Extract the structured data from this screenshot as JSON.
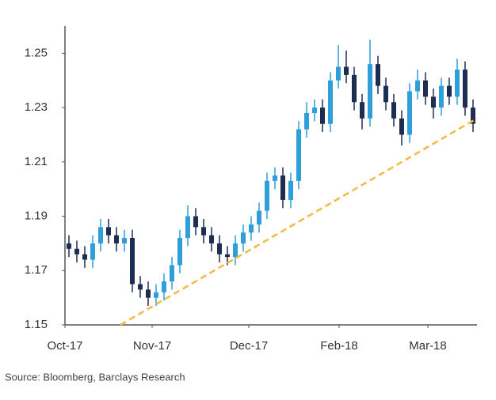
{
  "chart_data": {
    "type": "candlestick",
    "source": "Source: Bloomberg, Barclays Research",
    "up_color": "#2e9fd9",
    "down_color": "#1f2d52",
    "open": [
      1.18,
      1.178,
      1.176,
      1.174,
      1.18,
      1.186,
      1.183,
      1.18,
      1.182,
      1.165,
      1.163,
      1.16,
      1.162,
      1.166,
      1.172,
      1.182,
      1.19,
      1.186,
      1.183,
      1.18,
      1.176,
      1.175,
      1.18,
      1.184,
      1.187,
      1.192,
      1.203,
      1.205,
      1.196,
      1.203,
      1.222,
      1.228,
      1.23,
      1.224,
      1.24,
      1.245,
      1.242,
      1.232,
      1.226,
      1.246,
      1.238,
      1.232,
      1.226,
      1.22,
      1.236,
      1.24,
      1.234,
      1.23,
      1.238,
      1.234,
      1.244,
      1.23
    ],
    "high": [
      1.183,
      1.181,
      1.179,
      1.183,
      1.189,
      1.189,
      1.186,
      1.185,
      1.185,
      1.168,
      1.166,
      1.165,
      1.169,
      1.175,
      1.185,
      1.194,
      1.193,
      1.189,
      1.186,
      1.183,
      1.179,
      1.183,
      1.187,
      1.19,
      1.195,
      1.206,
      1.208,
      1.208,
      1.206,
      1.225,
      1.232,
      1.233,
      1.233,
      1.243,
      1.253,
      1.251,
      1.245,
      1.235,
      1.255,
      1.249,
      1.241,
      1.235,
      1.229,
      1.239,
      1.244,
      1.243,
      1.237,
      1.241,
      1.241,
      1.248,
      1.247,
      1.233
    ],
    "low": [
      1.175,
      1.173,
      1.171,
      1.171,
      1.177,
      1.18,
      1.177,
      1.177,
      1.162,
      1.16,
      1.157,
      1.157,
      1.159,
      1.163,
      1.169,
      1.179,
      1.183,
      1.18,
      1.177,
      1.173,
      1.172,
      1.172,
      1.177,
      1.181,
      1.184,
      1.189,
      1.2,
      1.193,
      1.193,
      1.2,
      1.219,
      1.225,
      1.221,
      1.221,
      1.237,
      1.239,
      1.229,
      1.222,
      1.223,
      1.235,
      1.229,
      1.223,
      1.216,
      1.217,
      1.233,
      1.231,
      1.226,
      1.227,
      1.231,
      1.231,
      1.227,
      1.221
    ],
    "close": [
      1.178,
      1.176,
      1.174,
      1.18,
      1.186,
      1.183,
      1.18,
      1.182,
      1.165,
      1.163,
      1.16,
      1.162,
      1.166,
      1.172,
      1.182,
      1.19,
      1.186,
      1.183,
      1.18,
      1.176,
      1.175,
      1.18,
      1.184,
      1.187,
      1.192,
      1.203,
      1.205,
      1.196,
      1.203,
      1.222,
      1.228,
      1.23,
      1.224,
      1.24,
      1.245,
      1.242,
      1.232,
      1.226,
      1.246,
      1.238,
      1.232,
      1.226,
      1.22,
      1.236,
      1.24,
      1.234,
      1.23,
      1.238,
      1.234,
      1.244,
      1.23,
      1.224
    ],
    "xlim": [
      0,
      52
    ],
    "xticks": [
      {
        "value": 0,
        "label": "Oct-17"
      },
      {
        "value": 11,
        "label": "Nov-17"
      },
      {
        "value": 23.2,
        "label": "Dec-17"
      },
      {
        "value": 34.6,
        "label": "Feb-18"
      },
      {
        "value": 45.8,
        "label": "Mar-18"
      }
    ],
    "ylim": [
      1.15,
      1.26
    ],
    "yticks": [
      1.15,
      1.17,
      1.19,
      1.21,
      1.23,
      1.25
    ],
    "trendline": {
      "x": [
        7,
        52
      ],
      "y": [
        1.15,
        1.226
      ],
      "color": "#f5b942"
    }
  }
}
